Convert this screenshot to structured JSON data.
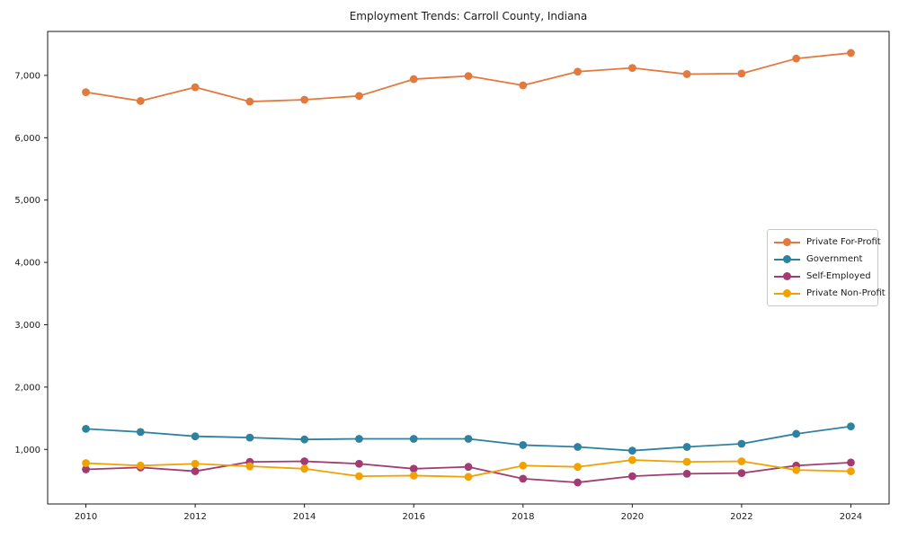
{
  "chart_data": {
    "type": "line",
    "title": "Employment Trends: Carroll County, Indiana",
    "x": [
      2010,
      2011,
      2012,
      2013,
      2014,
      2015,
      2016,
      2017,
      2018,
      2019,
      2020,
      2021,
      2022,
      2023,
      2024
    ],
    "series": [
      {
        "name": "Private For-Profit",
        "color": "#e2793e",
        "values": [
          6730,
          6590,
          6810,
          6580,
          6610,
          6670,
          6940,
          6990,
          6840,
          7060,
          7120,
          7020,
          7030,
          7270,
          7360
        ]
      },
      {
        "name": "Government",
        "color": "#2e82a0",
        "values": [
          1330,
          1280,
          1210,
          1190,
          1160,
          1170,
          1170,
          1170,
          1070,
          1040,
          980,
          1040,
          1090,
          1250,
          1370
        ]
      },
      {
        "name": "Self-Employed",
        "color": "#a23b72",
        "values": [
          680,
          710,
          650,
          800,
          810,
          770,
          690,
          720,
          530,
          470,
          570,
          610,
          620,
          740,
          790
        ]
      },
      {
        "name": "Private Non-Profit",
        "color": "#f0a202",
        "values": [
          780,
          740,
          770,
          730,
          690,
          570,
          580,
          560,
          740,
          720,
          830,
          800,
          810,
          670,
          650
        ]
      }
    ],
    "xticks": [
      2010,
      2012,
      2014,
      2016,
      2018,
      2020,
      2022,
      2024
    ],
    "yticks": [
      1000,
      2000,
      3000,
      4000,
      5000,
      6000,
      7000
    ],
    "ytick_labels": [
      "1,000",
      "2,000",
      "3,000",
      "4,000",
      "5,000",
      "6,000",
      "7,000"
    ],
    "xlim": [
      2009.3,
      2024.7
    ],
    "ylim": [
      125,
      7705
    ],
    "grid": false,
    "legend_position": "center-right",
    "axis_color": "#1a1a1a"
  }
}
